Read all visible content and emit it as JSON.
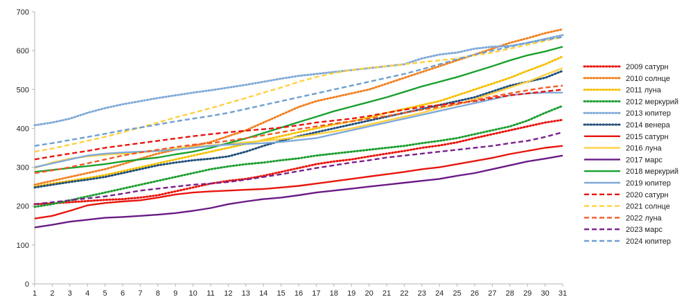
{
  "chart_data": {
    "type": "line",
    "title": "",
    "xlabel": "",
    "ylabel": "",
    "ylim": [
      0,
      700
    ],
    "yticks": [
      0,
      100,
      200,
      300,
      400,
      500,
      600,
      700
    ],
    "grid": false,
    "legend_position": "right",
    "x": [
      1,
      2,
      3,
      4,
      5,
      6,
      7,
      8,
      9,
      10,
      11,
      12,
      13,
      14,
      15,
      16,
      17,
      18,
      19,
      20,
      21,
      22,
      23,
      24,
      25,
      26,
      27,
      28,
      29,
      30,
      31
    ],
    "series": [
      {
        "name": "2009 сатурн",
        "color": "#e8150d",
        "dash": "dotted",
        "values": [
          205,
          207,
          210,
          213,
          216,
          218,
          222,
          228,
          238,
          248,
          258,
          265,
          270,
          278,
          288,
          298,
          308,
          315,
          320,
          328,
          335,
          342,
          350,
          356,
          364,
          375,
          385,
          395,
          405,
          415,
          422
        ]
      },
      {
        "name": "2010 солнце",
        "color": "#f08020",
        "dash": "dotted",
        "values": [
          255,
          265,
          275,
          285,
          295,
          308,
          322,
          335,
          345,
          355,
          365,
          380,
          395,
          415,
          435,
          455,
          470,
          480,
          490,
          500,
          515,
          530,
          545,
          560,
          575,
          590,
          605,
          620,
          632,
          645,
          655
        ]
      },
      {
        "name": "2011 луна",
        "color": "#f5c000",
        "dash": "dotted",
        "values": [
          250,
          258,
          265,
          272,
          280,
          290,
          300,
          310,
          320,
          330,
          340,
          350,
          360,
          370,
          380,
          390,
          400,
          410,
          418,
          428,
          440,
          450,
          460,
          470,
          485,
          500,
          515,
          530,
          548,
          565,
          585
        ]
      },
      {
        "name": "2012 меркурий",
        "color": "#1a9e2e",
        "dash": "dotted",
        "values": [
          198,
          205,
          215,
          225,
          235,
          245,
          255,
          265,
          275,
          285,
          295,
          302,
          308,
          312,
          318,
          323,
          330,
          335,
          340,
          345,
          350,
          355,
          362,
          368,
          375,
          385,
          395,
          405,
          420,
          440,
          458
        ]
      },
      {
        "name": "2013 юпитер",
        "color": "#7fa9d8",
        "dash": "dotted",
        "values": [
          408,
          415,
          425,
          440,
          452,
          462,
          470,
          478,
          485,
          492,
          498,
          505,
          512,
          520,
          528,
          535,
          540,
          545,
          550,
          555,
          560,
          565,
          580,
          590,
          595,
          605,
          610,
          612,
          620,
          630,
          640
        ]
      },
      {
        "name": "2014 венера",
        "color": "#1f4e79",
        "dash": "dotted",
        "values": [
          248,
          255,
          262,
          268,
          275,
          285,
          295,
          305,
          312,
          318,
          322,
          328,
          340,
          355,
          368,
          380,
          390,
          400,
          410,
          420,
          430,
          440,
          450,
          460,
          470,
          480,
          495,
          510,
          520,
          530,
          548
        ]
      },
      {
        "name": "2015 сатурн",
        "color": "#e8150d",
        "dash": "solid",
        "values": [
          168,
          175,
          188,
          202,
          208,
          212,
          215,
          222,
          230,
          235,
          238,
          240,
          242,
          244,
          248,
          252,
          258,
          264,
          270,
          276,
          282,
          288,
          295,
          300,
          308,
          316,
          324,
          334,
          342,
          350,
          355
        ]
      },
      {
        "name": "2016 луна",
        "color": "#ffd040",
        "dash": "solid",
        "values": [
          298,
          312,
          322,
          328,
          332,
          335,
          338,
          342,
          348,
          352,
          356,
          360,
          364,
          368,
          372,
          378,
          385,
          392,
          400,
          410,
          420,
          430,
          440,
          452,
          462,
          475,
          490,
          505,
          520,
          538,
          555
        ]
      },
      {
        "name": "2017 марс",
        "color": "#6a1a86",
        "dash": "solid",
        "values": [
          145,
          152,
          160,
          165,
          170,
          172,
          175,
          178,
          182,
          188,
          195,
          205,
          212,
          218,
          222,
          228,
          235,
          240,
          245,
          250,
          255,
          260,
          265,
          270,
          278,
          285,
          295,
          305,
          315,
          322,
          330
        ]
      },
      {
        "name": "2018 меркурий",
        "color": "#19a02e",
        "dash": "solid",
        "values": [
          288,
          293,
          298,
          303,
          308,
          315,
          320,
          325,
          333,
          340,
          350,
          362,
          374,
          388,
          402,
          416,
          430,
          444,
          456,
          468,
          480,
          494,
          508,
          520,
          532,
          546,
          560,
          575,
          588,
          598,
          610
        ]
      },
      {
        "name": "2019 юпитер",
        "color": "#7fa9d8",
        "dash": "solid",
        "values": [
          300,
          310,
          320,
          330,
          335,
          338,
          340,
          342,
          345,
          350,
          355,
          358,
          360,
          362,
          365,
          370,
          375,
          385,
          395,
          405,
          415,
          425,
          435,
          445,
          455,
          465,
          475,
          485,
          490,
          492,
          492
        ]
      },
      {
        "name": "2020 сатурн",
        "color": "#e8150d",
        "dash": "dashed",
        "values": [
          320,
          328,
          335,
          342,
          350,
          356,
          362,
          368,
          374,
          380,
          385,
          390,
          394,
          398,
          402,
          408,
          415,
          420,
          425,
          432,
          440,
          448,
          455,
          460,
          465,
          470,
          478,
          485,
          490,
          495,
          500
        ]
      },
      {
        "name": "2021 солнце",
        "color": "#ffd040",
        "dash": "dashed",
        "values": [
          340,
          348,
          358,
          368,
          378,
          390,
          402,
          415,
          428,
          440,
          452,
          465,
          478,
          492,
          505,
          520,
          532,
          542,
          550,
          556,
          560,
          565,
          570,
          575,
          580,
          588,
          595,
          605,
          615,
          625,
          635
        ]
      },
      {
        "name": "2022 луна",
        "color": "#f05a28",
        "dash": "dashed",
        "values": [
          285,
          292,
          300,
          310,
          320,
          330,
          338,
          345,
          352,
          358,
          362,
          368,
          375,
          382,
          390,
          398,
          405,
          412,
          418,
          425,
          432,
          440,
          448,
          455,
          462,
          472,
          482,
          490,
          498,
          505,
          510
        ]
      },
      {
        "name": "2023 марс",
        "color": "#7a1f8c",
        "dash": "dashed",
        "values": [
          205,
          210,
          215,
          220,
          225,
          232,
          240,
          245,
          250,
          255,
          258,
          262,
          268,
          275,
          282,
          290,
          298,
          305,
          312,
          318,
          325,
          330,
          335,
          340,
          345,
          350,
          355,
          362,
          368,
          378,
          390
        ]
      },
      {
        "name": "2024 юпитер",
        "color": "#6e9fd0",
        "dash": "dashed",
        "values": [
          355,
          362,
          370,
          378,
          386,
          395,
          402,
          410,
          418,
          425,
          432,
          440,
          450,
          460,
          470,
          480,
          490,
          500,
          510,
          520,
          530,
          540,
          552,
          565,
          578,
          590,
          600,
          610,
          620,
          628,
          635
        ]
      }
    ]
  }
}
